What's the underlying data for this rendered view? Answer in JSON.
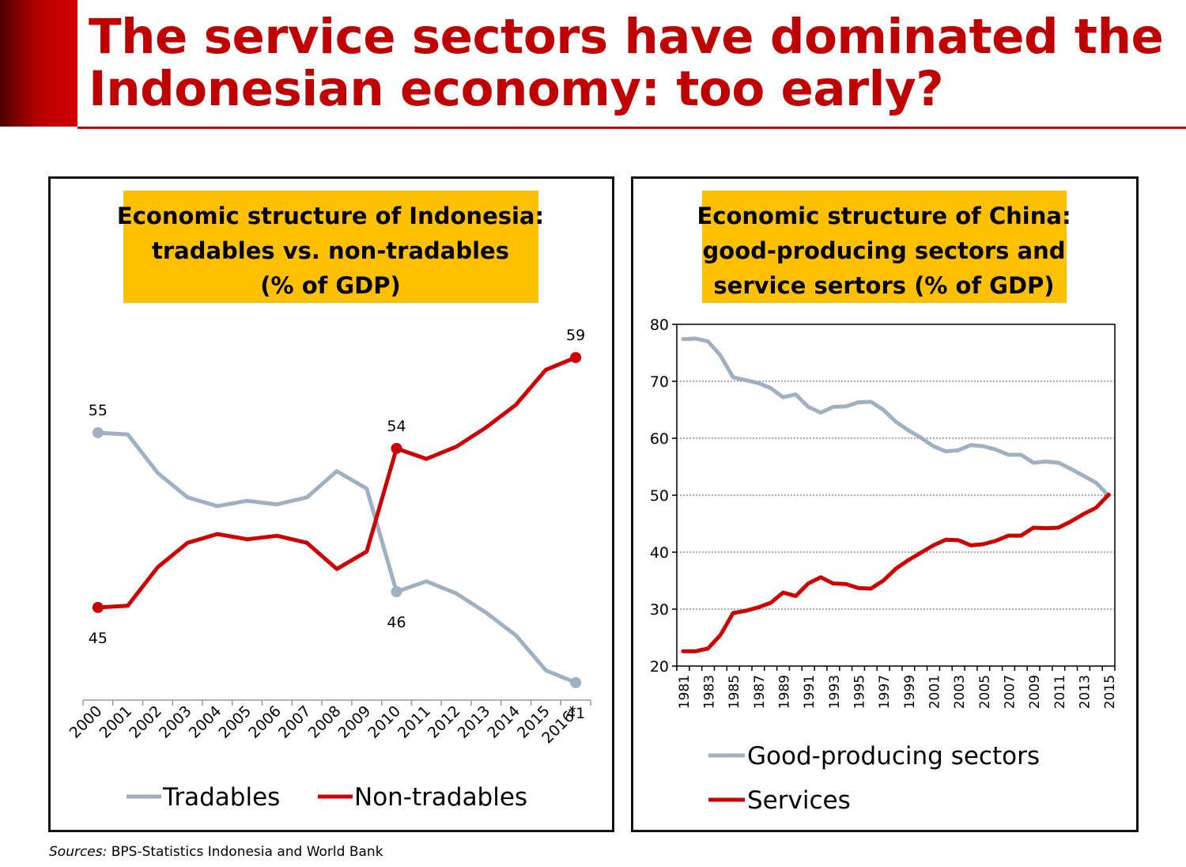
{
  "slide": {
    "title_line1": "The service sectors have dominated the",
    "title_line2": "Indonesian economy: too early?",
    "sources_label": "Sources:",
    "sources_text": "BPS-Statistics Indonesia and World Bank",
    "accent_color": "#c00000"
  },
  "chart_data": [
    {
      "type": "line",
      "title": [
        "Economic structure of Indonesia:",
        "tradables vs. non-tradables",
        "(% of GDP)"
      ],
      "title_bg": "#ffc000",
      "categories": [
        "2000",
        "2001",
        "2002",
        "2003",
        "2004",
        "2005",
        "2006",
        "2007",
        "2008",
        "2009",
        "2010",
        "2011",
        "2012",
        "2013",
        "2014",
        "2015",
        "2016*"
      ],
      "series": [
        {
          "name": "Tradables",
          "color": "#9fb0c3",
          "values": [
            55,
            54.9,
            52.7,
            51.3,
            50.8,
            51.1,
            50.9,
            51.3,
            52.8,
            51.8,
            45.9,
            46.5,
            45.8,
            44.7,
            43.4,
            41.4,
            40.7
          ]
        },
        {
          "name": "Non-tradables",
          "color": "#cc0000",
          "values": [
            45,
            45.1,
            47.3,
            48.7,
            49.2,
            48.9,
            49.1,
            48.7,
            47.2,
            48.2,
            54.1,
            53.5,
            54.2,
            55.3,
            56.6,
            58.6,
            59.3
          ]
        }
      ],
      "data_labels": [
        {
          "series": "Tradables",
          "index": 0,
          "text": "55"
        },
        {
          "series": "Non-tradables",
          "index": 0,
          "text": "45"
        },
        {
          "series": "Non-tradables",
          "index": 10,
          "text": "54"
        },
        {
          "series": "Tradables",
          "index": 10,
          "text": "46"
        },
        {
          "series": "Non-tradables",
          "index": 16,
          "text": "59"
        },
        {
          "series": "Tradables",
          "index": 16,
          "text": "41"
        }
      ],
      "ylim": [
        39.7,
        61.2
      ],
      "xlabel": "",
      "ylabel": "",
      "legend": "bottom"
    },
    {
      "type": "line",
      "title": [
        "Economic structure of China:",
        "good-producing sectors and",
        "service sertors (% of GDP)"
      ],
      "title_bg": "#ffc000",
      "x": [
        1981,
        1982,
        1983,
        1984,
        1985,
        1986,
        1987,
        1988,
        1989,
        1990,
        1991,
        1992,
        1993,
        1994,
        1995,
        1996,
        1997,
        1998,
        1999,
        2000,
        2001,
        2002,
        2003,
        2004,
        2005,
        2006,
        2007,
        2008,
        2009,
        2010,
        2011,
        2012,
        2013,
        2014,
        2015
      ],
      "x_tick_labels": [
        "1981",
        "1983",
        "1985",
        "1987",
        "1989",
        "1991",
        "1993",
        "1995",
        "1997",
        "1999",
        "2001",
        "2003",
        "2005",
        "2007",
        "2009",
        "2011",
        "2013",
        "2015"
      ],
      "series": [
        {
          "name": "Good-producing sectors",
          "color": "#9fb0c3",
          "values": [
            77.4,
            77.5,
            77,
            74.5,
            70.7,
            70.2,
            69.7,
            68.8,
            67.2,
            67.7,
            65.5,
            64.5,
            65.5,
            65.6,
            66.3,
            66.4,
            65,
            62.9,
            61.4,
            60.1,
            58.6,
            57.7,
            57.9,
            58.8,
            58.6,
            58,
            57.1,
            57.1,
            55.7,
            55.9,
            55.7,
            54.6,
            53.4,
            52.2,
            49.9
          ]
        },
        {
          "name": "Services",
          "color": "#cc0000",
          "values": [
            22.6,
            22.6,
            23.1,
            25.5,
            29.3,
            29.7,
            30.3,
            31.1,
            32.9,
            32.3,
            34.5,
            35.6,
            34.5,
            34.4,
            33.7,
            33.6,
            35,
            37.1,
            38.6,
            39.9,
            41.2,
            42.2,
            42.1,
            41.2,
            41.4,
            42,
            42.9,
            42.9,
            44.3,
            44.2,
            44.3,
            45.4,
            46.7,
            47.8,
            50.1
          ]
        }
      ],
      "y_ticks": [
        20,
        30,
        40,
        50,
        60,
        70,
        80
      ],
      "ylim": [
        20,
        80
      ],
      "grid": true,
      "xlabel": "",
      "ylabel": "",
      "legend": "bottom"
    }
  ]
}
